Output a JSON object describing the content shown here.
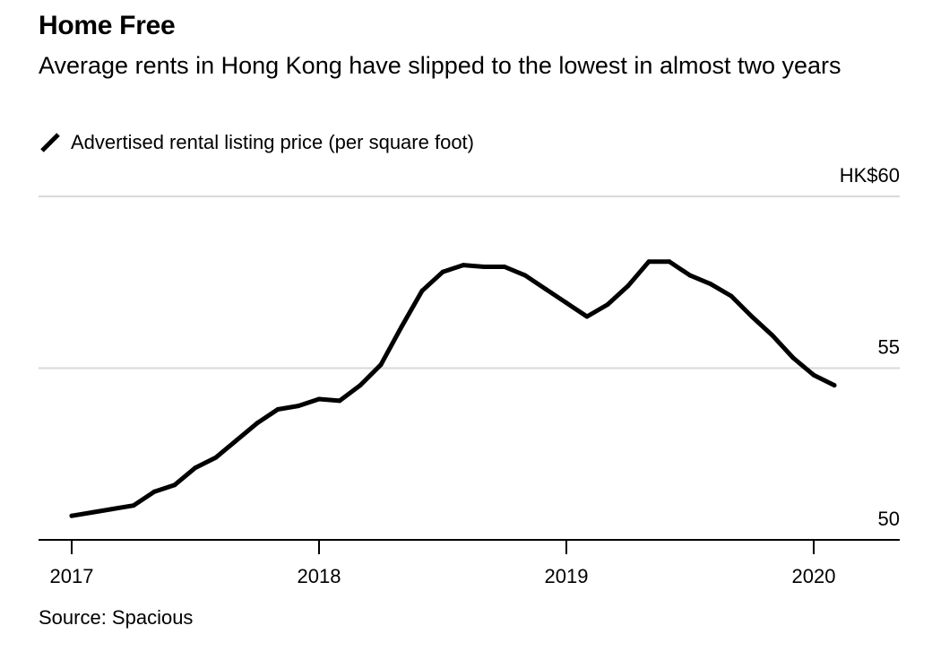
{
  "title": "Home Free",
  "subtitle": "Average rents in Hong Kong have slipped to the lowest in almost two years",
  "legend": {
    "label": "Advertised rental listing price (per square foot)",
    "icon": "line-swatch-icon"
  },
  "source": "Source: Spacious",
  "chart_data": {
    "type": "line",
    "title": "Home Free",
    "subtitle": "Average rents in Hong Kong have slipped to the lowest in almost two years",
    "series": [
      {
        "name": "Advertised rental listing price (per square foot)",
        "color": "#000000",
        "x": [
          "2017-01",
          "2017-02",
          "2017-03",
          "2017-04",
          "2017-05",
          "2017-06",
          "2017-07",
          "2017-08",
          "2017-09",
          "2017-10",
          "2017-11",
          "2017-12",
          "2018-01",
          "2018-02",
          "2018-03",
          "2018-04",
          "2018-05",
          "2018-06",
          "2018-07",
          "2018-08",
          "2018-09",
          "2018-10",
          "2018-11",
          "2018-12",
          "2019-01",
          "2019-02",
          "2019-03",
          "2019-04",
          "2019-05",
          "2019-06",
          "2019-07",
          "2019-08",
          "2019-09",
          "2019-10",
          "2019-11",
          "2019-12",
          "2020-01",
          "2020-02"
        ],
        "values": [
          50.7,
          50.8,
          50.9,
          51.0,
          51.4,
          51.6,
          52.1,
          52.4,
          52.9,
          53.4,
          53.8,
          53.9,
          54.1,
          54.05,
          54.5,
          55.1,
          56.2,
          57.25,
          57.8,
          58.0,
          57.95,
          57.95,
          57.7,
          57.3,
          56.9,
          56.5,
          56.85,
          57.4,
          58.1,
          58.1,
          57.7,
          57.45,
          57.1,
          56.5,
          55.95,
          55.3,
          54.8,
          54.5
        ]
      }
    ],
    "y_ticks": [
      {
        "value": 60,
        "label": "HK$60"
      },
      {
        "value": 55,
        "label": "55"
      },
      {
        "value": 50,
        "label": "50"
      }
    ],
    "x_ticks": [
      {
        "value": "2017-01",
        "label": "2017"
      },
      {
        "value": "2018-01",
        "label": "2018"
      },
      {
        "value": "2019-01",
        "label": "2019"
      },
      {
        "value": "2020-01",
        "label": "2020"
      }
    ],
    "xlabel": "",
    "ylabel": "",
    "ylim": [
      50,
      60
    ],
    "xlim": [
      "2017-01",
      "2020-05"
    ],
    "grid": true,
    "legend_position": "top-left"
  }
}
